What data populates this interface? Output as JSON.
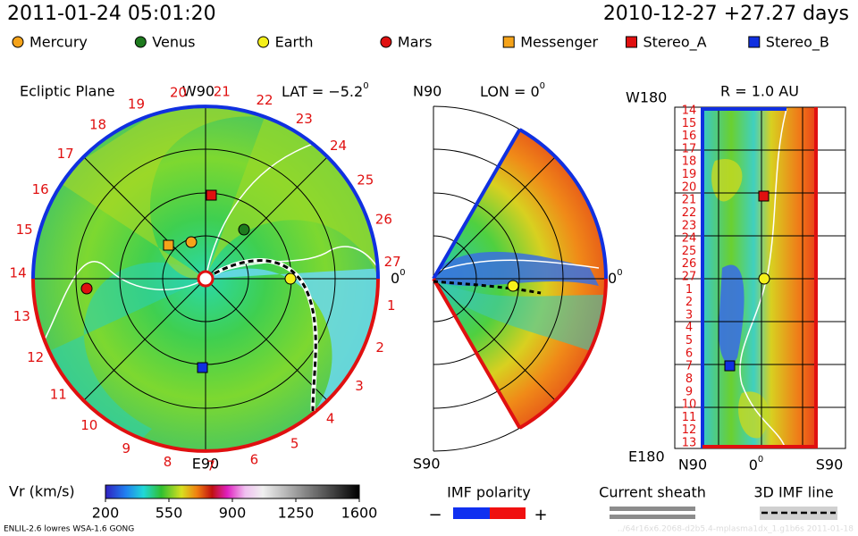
{
  "header": {
    "date": "2011-01-24 05:01:20",
    "run": "2010-12-27 +27.27 days"
  },
  "legend": [
    {
      "label": "Mercury",
      "color": "#f5a31a",
      "shape": "circle"
    },
    {
      "label": "Venus",
      "color": "#1e7a1e",
      "shape": "circle"
    },
    {
      "label": "Earth",
      "color": "#f5f01a",
      "shape": "circle"
    },
    {
      "label": "Mars",
      "color": "#e01010",
      "shape": "circle"
    },
    {
      "label": "Messenger",
      "color": "#f5a31a",
      "shape": "square"
    },
    {
      "label": "Stereo_A",
      "color": "#e01010",
      "shape": "square"
    },
    {
      "label": "Stereo_B",
      "color": "#1030e0",
      "shape": "square"
    }
  ],
  "ecliptic": {
    "title": "Ecliptic Plane",
    "top": "W90",
    "lat": "LAT = −5.2",
    "lat_sup": "0",
    "bottom": "E90",
    "right": "0",
    "right_sup": "0",
    "longitudes": [
      "1",
      "2",
      "3",
      "4",
      "5",
      "6",
      "7",
      "8",
      "9",
      "10",
      "11",
      "12",
      "13",
      "14",
      "15",
      "16",
      "17",
      "18",
      "19",
      "20",
      "21",
      "22",
      "23",
      "24",
      "25",
      "26",
      "27"
    ]
  },
  "meridional": {
    "top": "N90",
    "lon": "LON = 0",
    "lon_sup": "0",
    "bottom": "S90",
    "right": "0",
    "right_sup": "0"
  },
  "sphere": {
    "top": "W180",
    "radius": "R = 1.0 AU",
    "bottom": "E180",
    "x_left": "N90",
    "x_mid": "0",
    "x_mid_sup": "0",
    "x_right": "S90",
    "longitudes": [
      "14",
      "15",
      "16",
      "17",
      "18",
      "19",
      "20",
      "21",
      "22",
      "23",
      "24",
      "25",
      "26",
      "27",
      "1",
      "2",
      "3",
      "4",
      "5",
      "6",
      "7",
      "8",
      "9",
      "10",
      "11",
      "12",
      "13"
    ]
  },
  "colorbar": {
    "label": "Vr (km/s)",
    "ticks": [
      200,
      550,
      900,
      1250,
      1600
    ]
  },
  "imf_polarity": {
    "label": "IMF polarity",
    "minus": "−",
    "plus": "+"
  },
  "current_sheath": {
    "label": "Current sheath"
  },
  "imf_line": {
    "label": "3D IMF line"
  },
  "footer": {
    "model": "ENLIL-2.6 lowres WSA-1.6 GONG",
    "run_id": "../64r16x6.2068-d2b5.4-mplasma1dx_1.g1b6s  2011-01-18"
  }
}
